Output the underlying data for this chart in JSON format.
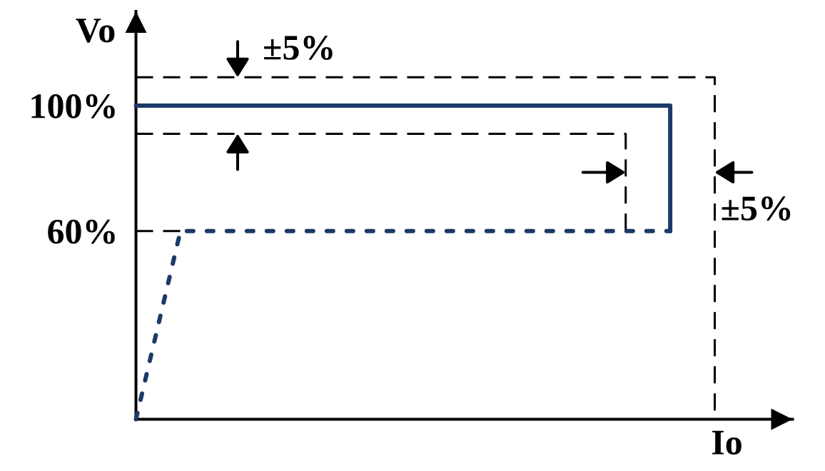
{
  "chart_data": {
    "type": "line",
    "xlabel": "Io",
    "ylabel": "Vo",
    "categories": [
      null,
      null,
      null,
      null,
      null,
      null,
      null,
      null,
      null,
      null,
      null,
      null,
      null,
      null
    ],
    "ylim": [
      0,
      130
    ],
    "yticks": [
      {
        "value": 60,
        "label": "60%"
      },
      {
        "value": 100,
        "label": "100%"
      }
    ],
    "tick_labels": "y",
    "series": [
      {
        "type": "step",
        "color": "#1c3a69",
        "line_style": "solid",
        "values": [
          100,
          100,
          100,
          100,
          100,
          100,
          100,
          100,
          100,
          100,
          100,
          100,
          60,
          null
        ]
      },
      {
        "color": "#1c3a69",
        "line_style": "dashed",
        "values": [
          0,
          60,
          60,
          60,
          60,
          60,
          60,
          60,
          60,
          60,
          60,
          60,
          60,
          null
        ]
      },
      {
        "type": "step",
        "color": "#000000",
        "line_style": "dashed",
        "values": [
          109,
          109,
          109,
          109,
          109,
          109,
          109,
          109,
          109,
          109,
          109,
          109,
          109,
          0
        ]
      },
      {
        "type": "step",
        "color": "#000000",
        "line_style": "dashed",
        "values": [
          91,
          91,
          91,
          91,
          91,
          91,
          91,
          91,
          91,
          91,
          91,
          60,
          null,
          null
        ]
      },
      {
        "color": "#000000",
        "line_style": "dashed",
        "values": [
          60,
          60,
          null,
          null,
          null,
          null,
          null,
          null,
          null,
          null,
          null,
          null,
          null,
          null
        ]
      }
    ],
    "annotations": [
      "±5%",
      "±5%"
    ]
  }
}
